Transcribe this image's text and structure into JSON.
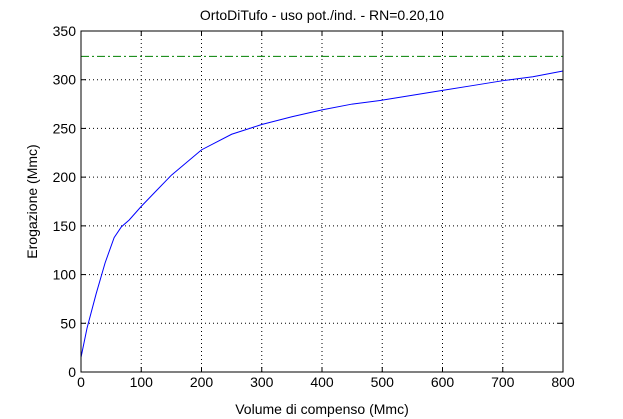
{
  "chart_data": {
    "type": "line",
    "title": "OrtoDiTufo  -  uso pot./ind.  -   RN=0.20,10",
    "xlabel": "Volume di compenso (Mmc)",
    "ylabel": "Erogazione (Mmc)",
    "xlim": [
      0,
      800
    ],
    "ylim": [
      0,
      350
    ],
    "xticks": [
      0,
      100,
      200,
      300,
      400,
      500,
      600,
      700,
      800
    ],
    "yticks": [
      0,
      50,
      100,
      150,
      200,
      250,
      300,
      350
    ],
    "xtick_labels": [
      "0",
      "100",
      "200",
      "300",
      "400",
      "500",
      "600",
      "700",
      "800"
    ],
    "ytick_labels": [
      "0",
      "50",
      "100",
      "150",
      "200",
      "250",
      "300",
      "350"
    ],
    "grid": true,
    "legend": "none",
    "series": [
      {
        "style": "solid",
        "color": "#0000ff",
        "x": [
          0,
          10,
          25,
          40,
          55,
          67,
          80,
          100,
          125,
          150,
          200,
          250,
          300,
          350,
          400,
          450,
          500,
          550,
          600,
          650,
          700,
          750,
          800
        ],
        "y": [
          15,
          45,
          80,
          112,
          138,
          149,
          156,
          170,
          186,
          202,
          228,
          244,
          254,
          262,
          269,
          275,
          279,
          284,
          289,
          294,
          299,
          303,
          309
        ]
      },
      {
        "style": "dash-dot",
        "color": "#008000",
        "x": [
          0,
          800
        ],
        "y": [
          324,
          324
        ]
      }
    ]
  }
}
